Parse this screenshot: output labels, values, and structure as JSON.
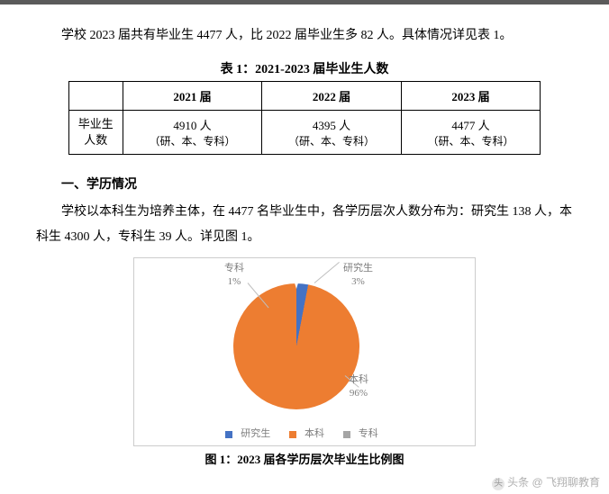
{
  "intro": "学校 2023 届共有毕业生 4477 人，比 2022 届毕业生多 82 人。具体情况详见表 1。",
  "table": {
    "title": "表 1：2021-2023 届毕业生人数",
    "cols": [
      "2021 届",
      "2022 届",
      "2023 届"
    ],
    "row_header": "毕业生\n人数",
    "cells": [
      {
        "v": "4910 人",
        "sub": "（研、本、专科）"
      },
      {
        "v": "4395 人",
        "sub": "（研、本、专科）"
      },
      {
        "v": "4477 人",
        "sub": "（研、本、专科）"
      }
    ]
  },
  "section": {
    "title": "一、学历情况",
    "body": "学校以本科生为培养主体，在 4477 名毕业生中，各学历层次人数分布为：研究生 138 人，本科生 4300 人，专科生 39 人。详见图 1。"
  },
  "chart": {
    "type": "pie",
    "title": "图 1：2023 届各学历层次毕业生比例图",
    "slices": [
      {
        "name": "本科",
        "pct": 96,
        "color": "#ed7d31"
      },
      {
        "name": "研究生",
        "pct": 3,
        "color": "#4472c4"
      },
      {
        "name": "专科",
        "pct": 1,
        "color": "#a5a5a5"
      }
    ],
    "labels": {
      "zhuanke": "专科\n1%",
      "yanjiu": "研究生\n3%",
      "benke": "本科\n96%"
    },
    "legend": [
      "研究生",
      "本科",
      "专科"
    ],
    "legend_colors": [
      "#4472c4",
      "#ed7d31",
      "#a5a5a5"
    ],
    "background_color": "#ffffff",
    "border_color": "#cccccc",
    "label_color": "#7d7d7d",
    "label_fontsize": 11
  },
  "watermark": "头条 @ 飞翔聊教育"
}
